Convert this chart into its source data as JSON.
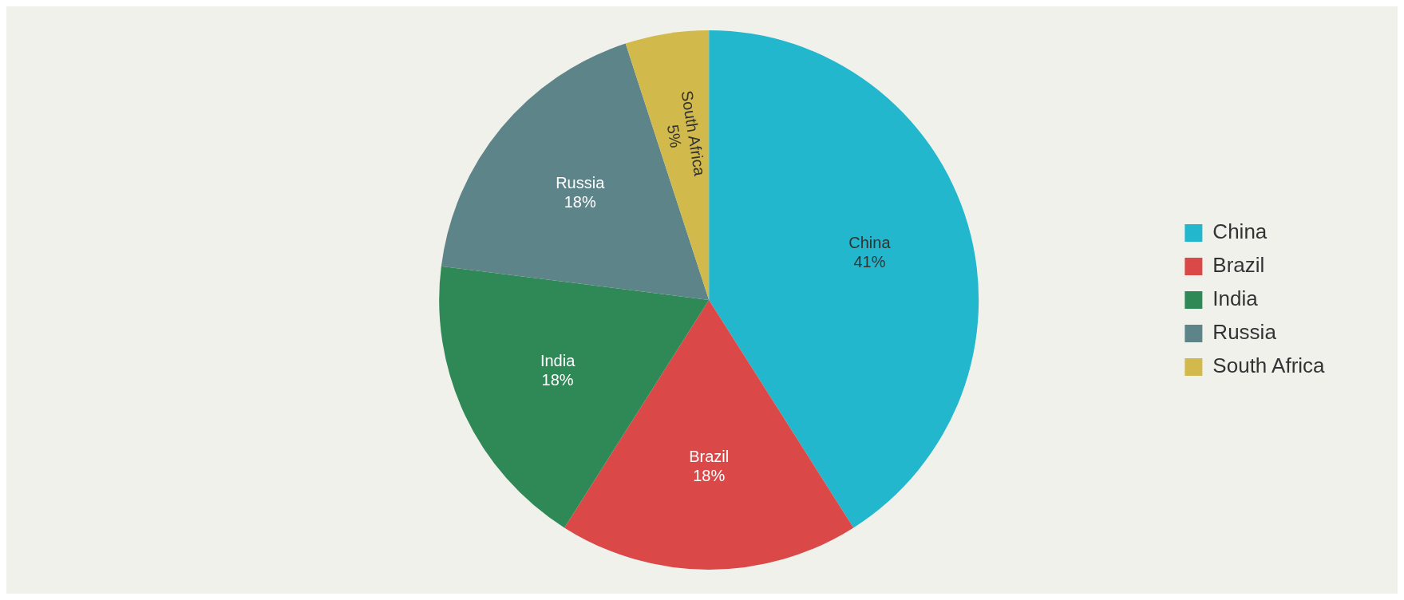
{
  "chart_data": {
    "type": "pie",
    "categories": [
      "China",
      "Brazil",
      "India",
      "Russia",
      "South Africa"
    ],
    "values": [
      41,
      18,
      18,
      18,
      5
    ],
    "value_labels": [
      "41%",
      "18%",
      "18%",
      "18%",
      "5%"
    ],
    "colors": [
      "#22b7cc",
      "#da4848",
      "#2e8956",
      "#5d8489",
      "#d1b94c"
    ],
    "legend": "right"
  }
}
